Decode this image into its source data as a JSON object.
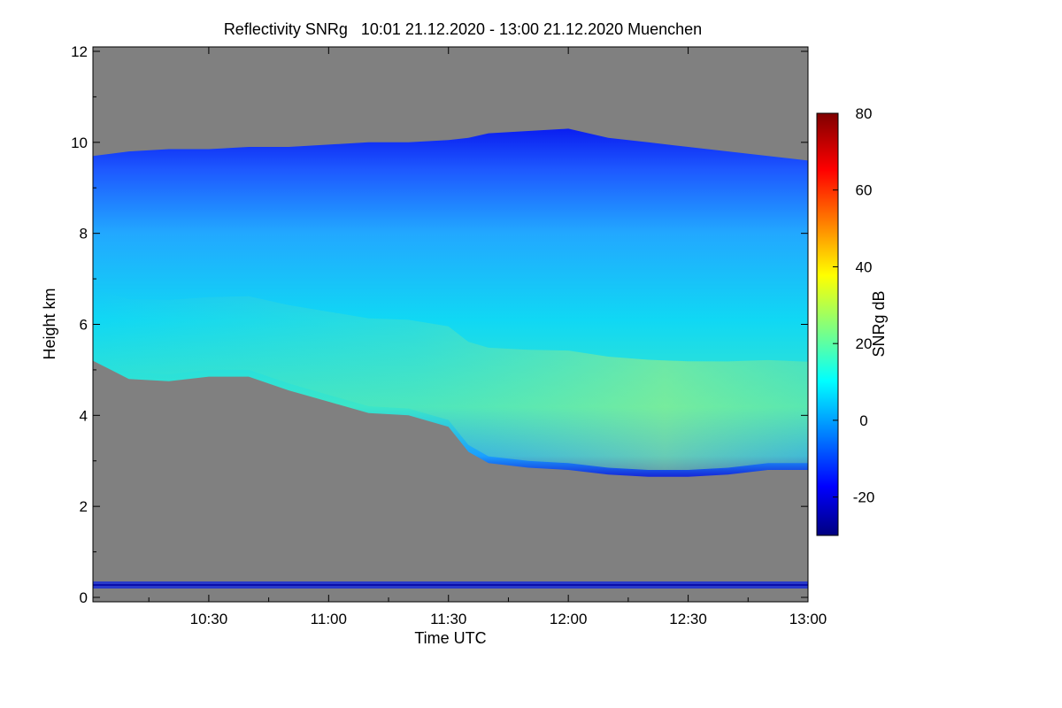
{
  "chart_data": {
    "type": "heatmap",
    "title": "Reflectivity SNRg   10:01 21.12.2020 - 13:00 21.12.2020 Muenchen",
    "xlabel": "Time UTC",
    "ylabel": "Height km",
    "colorbar_label": "SNRg dB",
    "x_range": [
      "10:01",
      "13:00"
    ],
    "x_ticks": [
      "10:30",
      "11:00",
      "11:30",
      "12:00",
      "12:30",
      "13:00"
    ],
    "x_tick_minutes": [
      30,
      60,
      90,
      120,
      150,
      180
    ],
    "ylim": [
      0,
      12
    ],
    "y_ticks": [
      "0",
      "2",
      "4",
      "6",
      "8",
      "10",
      "12"
    ],
    "y_tick_values": [
      0,
      2,
      4,
      6,
      8,
      10,
      12
    ],
    "colorbar_range": [
      -30,
      80
    ],
    "colorbar_ticks": [
      "-20",
      "0",
      "20",
      "40",
      "60",
      "80"
    ],
    "colorbar_tick_values": [
      -20,
      0,
      20,
      40,
      60,
      80
    ],
    "no_signal_color": "#808080",
    "echo_layer": {
      "time_minutes": [
        1,
        10,
        20,
        30,
        40,
        50,
        60,
        70,
        80,
        90,
        95,
        100,
        110,
        120,
        130,
        140,
        150,
        160,
        170,
        180
      ],
      "top_km": [
        9.7,
        9.8,
        9.85,
        9.85,
        9.9,
        9.9,
        9.95,
        10.0,
        10.0,
        10.05,
        10.1,
        10.2,
        10.25,
        10.3,
        10.1,
        10.0,
        9.9,
        9.8,
        9.7,
        9.6
      ],
      "base_km": [
        5.2,
        4.8,
        4.75,
        4.85,
        4.85,
        4.55,
        4.3,
        4.05,
        4.0,
        3.75,
        3.2,
        2.95,
        2.85,
        2.8,
        2.7,
        2.65,
        2.65,
        2.7,
        2.8,
        2.8
      ],
      "peak_snr_db": [
        10,
        11,
        13,
        15,
        17,
        18,
        19,
        20,
        20,
        19,
        19,
        20,
        22,
        24,
        26,
        27,
        28,
        28,
        27,
        25
      ]
    }
  }
}
